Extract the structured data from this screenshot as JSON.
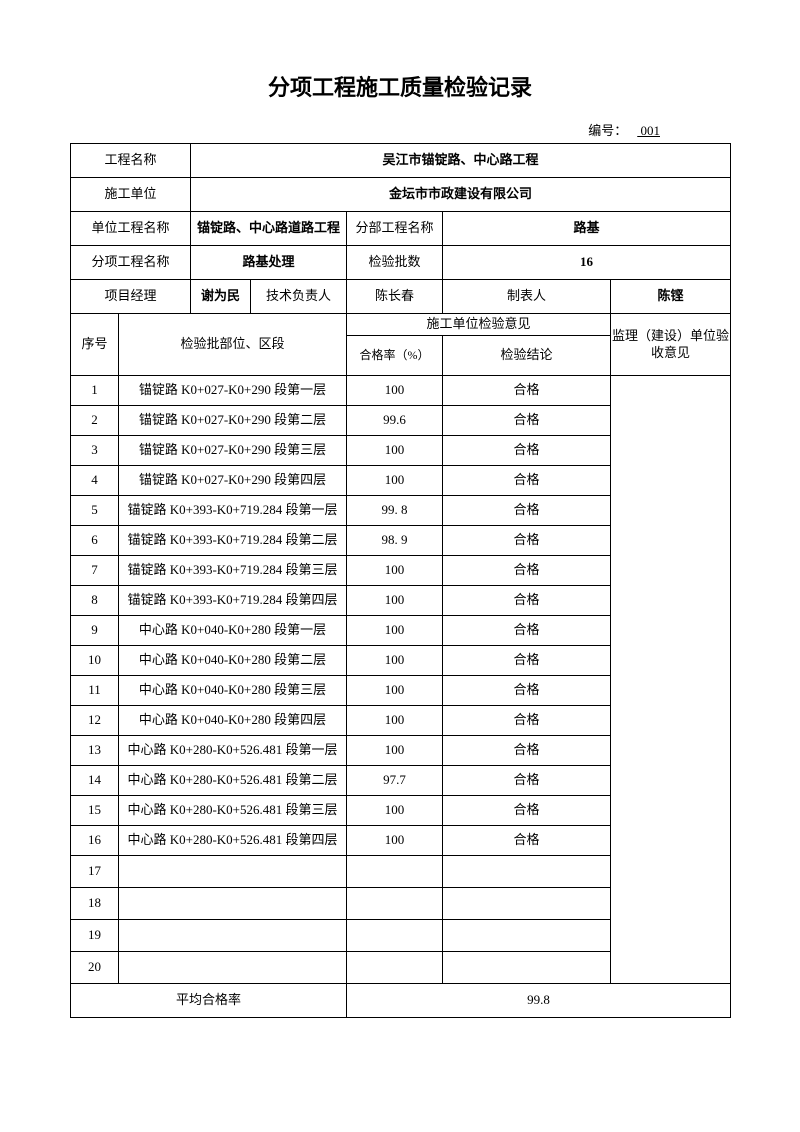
{
  "title": "分项工程施工质量检验记录",
  "docNoLabel": "编号：",
  "docNo": "  001  ",
  "header": {
    "projectNameLabel": "工程名称",
    "projectName": "吴江市锚锭路、中心路工程",
    "constructorLabel": "施工单位",
    "constructor": "金坛市市政建设有限公司",
    "unitProjectLabel": "单位工程名称",
    "unitProject": "锚锭路、中心路道路工程",
    "subProjectLabel": "分部工程名称",
    "subProject": "路基",
    "itemProjectLabel": "分项工程名称",
    "itemProject": "路基处理",
    "batchCountLabel": "检验批数",
    "batchCount": "16",
    "pmLabel": "项目经理",
    "pm": "谢为民",
    "techLeadLabel": "技术负责人",
    "techLead": "陈长春",
    "preparerLabel": "制表人",
    "preparer": "陈铿"
  },
  "colHeaders": {
    "seq": "序号",
    "location": "检验批部位、区段",
    "constructorOpinion": "施工单位检验意见",
    "passRate": "合格率（%）",
    "verdict": "检验结论",
    "supervisor": "监理（建设）单位验收意见"
  },
  "rows": [
    {
      "seq": "1",
      "loc": "锚锭路 K0+027-K0+290 段第一层",
      "rate": "100",
      "verdict": "合格"
    },
    {
      "seq": "2",
      "loc": "锚锭路 K0+027-K0+290 段第二层",
      "rate": "99.6",
      "verdict": "合格"
    },
    {
      "seq": "3",
      "loc": "锚锭路 K0+027-K0+290 段第三层",
      "rate": "100",
      "verdict": "合格"
    },
    {
      "seq": "4",
      "loc": "锚锭路 K0+027-K0+290 段第四层",
      "rate": "100",
      "verdict": "合格"
    },
    {
      "seq": "5",
      "loc": "锚锭路 K0+393-K0+719.284 段第一层",
      "rate": "99. 8",
      "verdict": "合格"
    },
    {
      "seq": "6",
      "loc": "锚锭路 K0+393-K0+719.284 段第二层",
      "rate": "98. 9",
      "verdict": "合格"
    },
    {
      "seq": "7",
      "loc": "锚锭路 K0+393-K0+719.284 段第三层",
      "rate": "100",
      "verdict": "合格"
    },
    {
      "seq": "8",
      "loc": "锚锭路 K0+393-K0+719.284 段第四层",
      "rate": "100",
      "verdict": "合格"
    },
    {
      "seq": "9",
      "loc": "中心路 K0+040-K0+280 段第一层",
      "rate": "100",
      "verdict": "合格"
    },
    {
      "seq": "10",
      "loc": "中心路 K0+040-K0+280 段第二层",
      "rate": "100",
      "verdict": "合格"
    },
    {
      "seq": "11",
      "loc": "中心路 K0+040-K0+280 段第三层",
      "rate": "100",
      "verdict": "合格"
    },
    {
      "seq": "12",
      "loc": "中心路 K0+040-K0+280 段第四层",
      "rate": "100",
      "verdict": "合格"
    },
    {
      "seq": "13",
      "loc": "中心路 K0+280-K0+526.481 段第一层",
      "rate": "100",
      "verdict": "合格"
    },
    {
      "seq": "14",
      "loc": "中心路 K0+280-K0+526.481 段第二层",
      "rate": "97.7",
      "verdict": "合格"
    },
    {
      "seq": "15",
      "loc": "中心路 K0+280-K0+526.481 段第三层",
      "rate": "100",
      "verdict": "合格"
    },
    {
      "seq": "16",
      "loc": "中心路 K0+280-K0+526.481 段第四层",
      "rate": "100",
      "verdict": "合格"
    },
    {
      "seq": "17",
      "loc": "",
      "rate": "",
      "verdict": ""
    },
    {
      "seq": "18",
      "loc": "",
      "rate": "",
      "verdict": ""
    },
    {
      "seq": "19",
      "loc": "",
      "rate": "",
      "verdict": ""
    },
    {
      "seq": "20",
      "loc": "",
      "rate": "",
      "verdict": ""
    }
  ],
  "footer": {
    "avgLabel": "平均合格率",
    "avgValue": "99.8"
  },
  "style": {
    "pageBg": "#ffffff",
    "borderColor": "#000000",
    "titleFontSize": 22,
    "bodyFontSize": 13,
    "cols": [
      48,
      72,
      60,
      96,
      96,
      60,
      108,
      120
    ]
  }
}
